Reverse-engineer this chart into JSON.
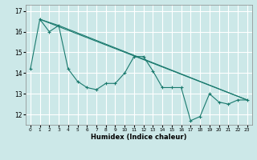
{
  "xlabel": "Humidex (Indice chaleur)",
  "background_color": "#cce8e8",
  "grid_color": "#ffffff",
  "line_color": "#1a7a6e",
  "xlim": [
    -0.5,
    23.5
  ],
  "ylim": [
    11.5,
    17.3
  ],
  "yticks": [
    12,
    13,
    14,
    15,
    16,
    17
  ],
  "xticks": [
    0,
    1,
    2,
    3,
    4,
    5,
    6,
    7,
    8,
    9,
    10,
    11,
    12,
    13,
    14,
    15,
    16,
    17,
    18,
    19,
    20,
    21,
    22,
    23
  ],
  "xtick_labels": [
    "0",
    "1",
    "2",
    "3",
    "4",
    "5",
    "6",
    "7",
    "8",
    "9",
    "10",
    "11",
    "12",
    "13",
    "14",
    "15",
    "16",
    "17",
    "18",
    "19",
    "20",
    "21",
    "22",
    "23"
  ],
  "series1_x": [
    0,
    1,
    2,
    3,
    4,
    5,
    6,
    7,
    8,
    9,
    10,
    11,
    12,
    13,
    14,
    15,
    16,
    17,
    18,
    19,
    20,
    21,
    22,
    23
  ],
  "series1_y": [
    14.2,
    16.6,
    16.0,
    16.3,
    14.2,
    13.6,
    13.3,
    13.2,
    13.5,
    13.5,
    14.0,
    14.8,
    14.8,
    14.1,
    13.3,
    13.3,
    13.3,
    11.7,
    11.9,
    13.0,
    12.6,
    12.5,
    12.7,
    12.7
  ],
  "series2_x": [
    1,
    3,
    23
  ],
  "series2_y": [
    16.6,
    16.3,
    12.7
  ],
  "series3_x": [
    1,
    23
  ],
  "series3_y": [
    16.6,
    12.7
  ]
}
